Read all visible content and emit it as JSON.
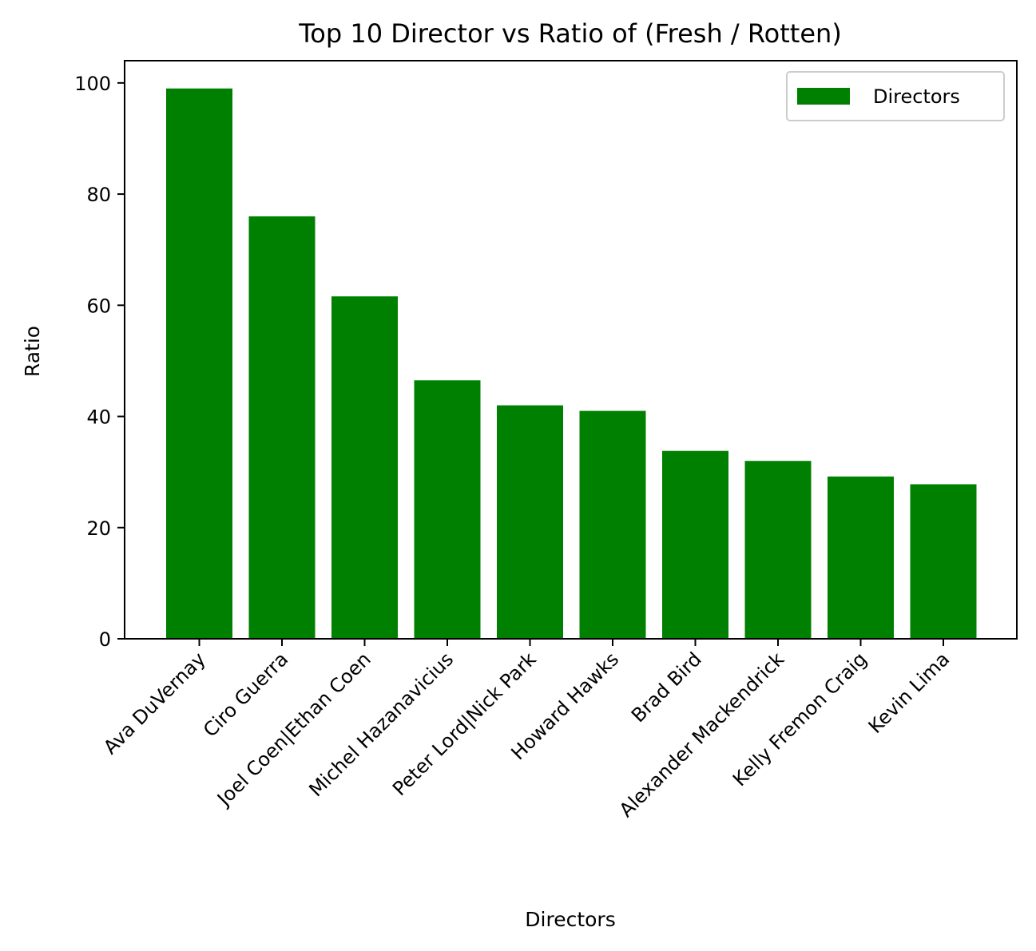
{
  "chart_data": {
    "type": "bar",
    "title": "Top 10 Director vs Ratio of (Fresh / Rotten)",
    "xlabel": "Directors",
    "ylabel": "Ratio",
    "categories": [
      "Ava DuVernay",
      "Ciro Guerra",
      "Joel Coen|Ethan Coen",
      "Michel Hazanavicius",
      "Peter Lord|Nick Park",
      "Howard Hawks",
      "Brad Bird",
      "Alexander Mackendrick",
      "Kelly Fremon Craig",
      "Kevin Lima"
    ],
    "series": [
      {
        "name": "Directors",
        "color": "#008000",
        "values": [
          99.0,
          76.0,
          61.6,
          46.5,
          42.0,
          41.0,
          33.8,
          32.0,
          29.2,
          27.8
        ]
      }
    ],
    "ylim": [
      0,
      104
    ],
    "yticks": [
      0,
      20,
      40,
      60,
      80,
      100
    ],
    "grid": false,
    "legend_position": "top-right",
    "tick_rotation_deg": -45
  }
}
